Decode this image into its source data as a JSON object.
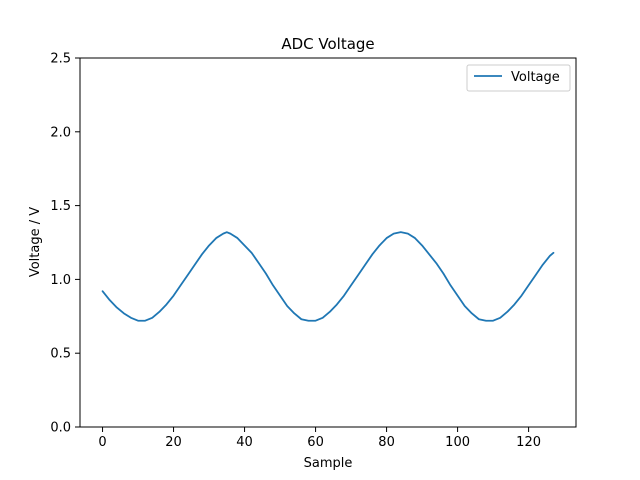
{
  "chart_data": {
    "type": "line",
    "title": "ADC Voltage",
    "xlabel": "Sample",
    "ylabel": "Voltage / V",
    "xlim": [
      -6.35,
      133.35
    ],
    "ylim": [
      0,
      2.5
    ],
    "xticks": [
      0,
      20,
      40,
      60,
      80,
      100,
      120
    ],
    "xtick_labels": [
      "0",
      "20",
      "40",
      "60",
      "80",
      "100",
      "120"
    ],
    "yticks": [
      0,
      0.5,
      1.0,
      1.5,
      2.0,
      2.5
    ],
    "ytick_labels": [
      "0.0",
      "0.5",
      "1.0",
      "1.5",
      "2.0",
      "2.5"
    ],
    "grid": false,
    "legend": {
      "position": "top-right",
      "entries": [
        "Voltage"
      ]
    },
    "series": [
      {
        "name": "Voltage",
        "color": "#1f77b4",
        "x": [
          0,
          2,
          4,
          6,
          8,
          10,
          12,
          14,
          16,
          18,
          20,
          22,
          24,
          26,
          28,
          30,
          32,
          34,
          35,
          36,
          38,
          40,
          42,
          44,
          46,
          48,
          50,
          52,
          54,
          56,
          58,
          60,
          62,
          64,
          66,
          68,
          70,
          72,
          74,
          76,
          78,
          80,
          82,
          84,
          86,
          88,
          90,
          92,
          94,
          96,
          98,
          100,
          102,
          104,
          106,
          108,
          110,
          112,
          114,
          116,
          118,
          120,
          122,
          124,
          126,
          127
        ],
        "values": [
          0.92,
          0.86,
          0.81,
          0.77,
          0.74,
          0.72,
          0.72,
          0.74,
          0.78,
          0.83,
          0.89,
          0.96,
          1.03,
          1.1,
          1.17,
          1.23,
          1.28,
          1.31,
          1.32,
          1.31,
          1.28,
          1.23,
          1.18,
          1.11,
          1.04,
          0.96,
          0.89,
          0.82,
          0.77,
          0.73,
          0.72,
          0.72,
          0.74,
          0.78,
          0.83,
          0.89,
          0.96,
          1.03,
          1.1,
          1.17,
          1.23,
          1.28,
          1.31,
          1.32,
          1.31,
          1.28,
          1.23,
          1.17,
          1.11,
          1.04,
          0.96,
          0.89,
          0.82,
          0.77,
          0.73,
          0.72,
          0.72,
          0.74,
          0.78,
          0.83,
          0.89,
          0.96,
          1.03,
          1.1,
          1.16,
          1.18
        ]
      }
    ]
  }
}
